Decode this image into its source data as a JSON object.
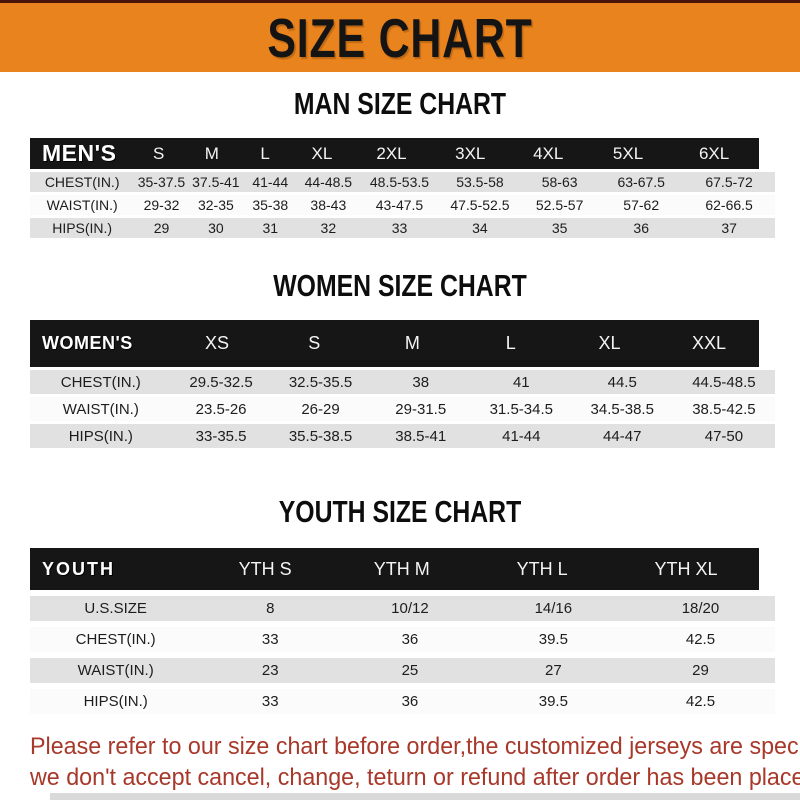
{
  "header": {
    "title": "SIZE CHART"
  },
  "sections": {
    "men": {
      "title": "MAN SIZE CHART",
      "table_label": "MEN'S",
      "sizes": [
        "S",
        "M",
        "L",
        "XL",
        "2XL",
        "3XL",
        "4XL",
        "5XL",
        "6XL"
      ],
      "rows": [
        {
          "label": "CHEST(IN.)",
          "values": [
            "35-37.5",
            "37.5-41",
            "41-44",
            "44-48.5",
            "48.5-53.5",
            "53.5-58",
            "58-63",
            "63-67.5",
            "67.5-72"
          ]
        },
        {
          "label": "WAIST(IN.)",
          "values": [
            "29-32",
            "32-35",
            "35-38",
            "38-43",
            "43-47.5",
            "47.5-52.5",
            "52.5-57",
            "57-62",
            "62-66.5"
          ]
        },
        {
          "label": "HIPS(IN.)",
          "values": [
            "29",
            "30",
            "31",
            "32",
            "33",
            "34",
            "35",
            "36",
            "37"
          ]
        }
      ]
    },
    "women": {
      "title": "WOMEN SIZE CHART",
      "table_label": "WOMEN'S",
      "sizes": [
        "XS",
        "S",
        "M",
        "L",
        "XL",
        "XXL"
      ],
      "rows": [
        {
          "label": "CHEST(IN.)",
          "values": [
            "29.5-32.5",
            "32.5-35.5",
            "38",
            "41",
            "44.5",
            "44.5-48.5"
          ]
        },
        {
          "label": "WAIST(IN.)",
          "values": [
            "23.5-26",
            "26-29",
            "29-31.5",
            "31.5-34.5",
            "34.5-38.5",
            "38.5-42.5"
          ]
        },
        {
          "label": "HIPS(IN.)",
          "values": [
            "33-35.5",
            "35.5-38.5",
            "38.5-41",
            "41-44",
            "44-47",
            "47-50"
          ]
        }
      ]
    },
    "youth": {
      "title": "YOUTH SIZE CHART",
      "table_label": "YOUTH",
      "sizes": [
        "YTH S",
        "YTH M",
        "YTH L",
        "YTH XL"
      ],
      "rows": [
        {
          "label": "U.S.SIZE",
          "values": [
            "8",
            "10/12",
            "14/16",
            "18/20"
          ]
        },
        {
          "label": "CHEST(IN.)",
          "values": [
            "33",
            "36",
            "39.5",
            "42.5"
          ]
        },
        {
          "label": "WAIST(IN.)",
          "values": [
            "23",
            "25",
            "27",
            "29"
          ]
        },
        {
          "label": "HIPS(IN.)",
          "values": [
            "33",
            "36",
            "39.5",
            "42.5"
          ]
        }
      ]
    }
  },
  "footer": {
    "line1": "Please refer to our size chart before order,the customized jerseys are special products,",
    "line2": "we don't accept cancel, change, teturn or refund after order has been placed!"
  },
  "colors": {
    "banner_orange": "#E9831E",
    "header_bar_black": "#161616",
    "row_gray": "#E1E1E1",
    "row_white": "#FBFBFB",
    "footer_red": "#A8382A"
  }
}
